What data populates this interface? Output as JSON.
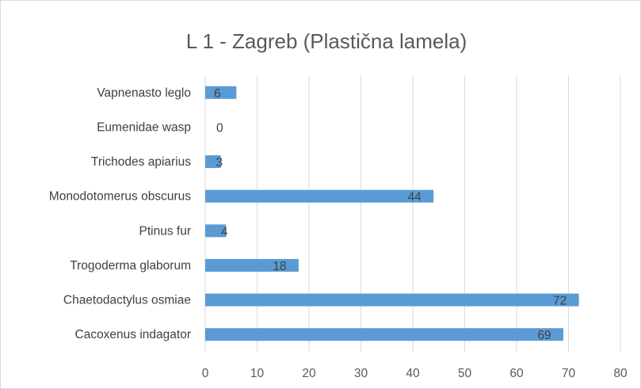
{
  "chart_data": {
    "type": "bar",
    "orientation": "horizontal",
    "title": "L 1 - Zagreb (Plastična lamela)",
    "xlabel": "",
    "ylabel": "",
    "categories": [
      "Vapnenasto leglo",
      "Eumenidae wasp",
      "Trichodes apiarius",
      "Monodotomerus obscurus",
      "Ptinus fur",
      "Trogoderma glaborum",
      "Chaetodactylus osmiae",
      "Cacoxenus indagator"
    ],
    "values": [
      6,
      0,
      3,
      44,
      4,
      18,
      72,
      69
    ],
    "xlim": [
      0,
      80
    ],
    "xticks": [
      0,
      10,
      20,
      30,
      40,
      50,
      60,
      70,
      80
    ],
    "grid": "vertical",
    "legend": "none",
    "data_labels": true,
    "bar_color": "#5b9bd5",
    "grid_color": "#d9d9d9"
  }
}
